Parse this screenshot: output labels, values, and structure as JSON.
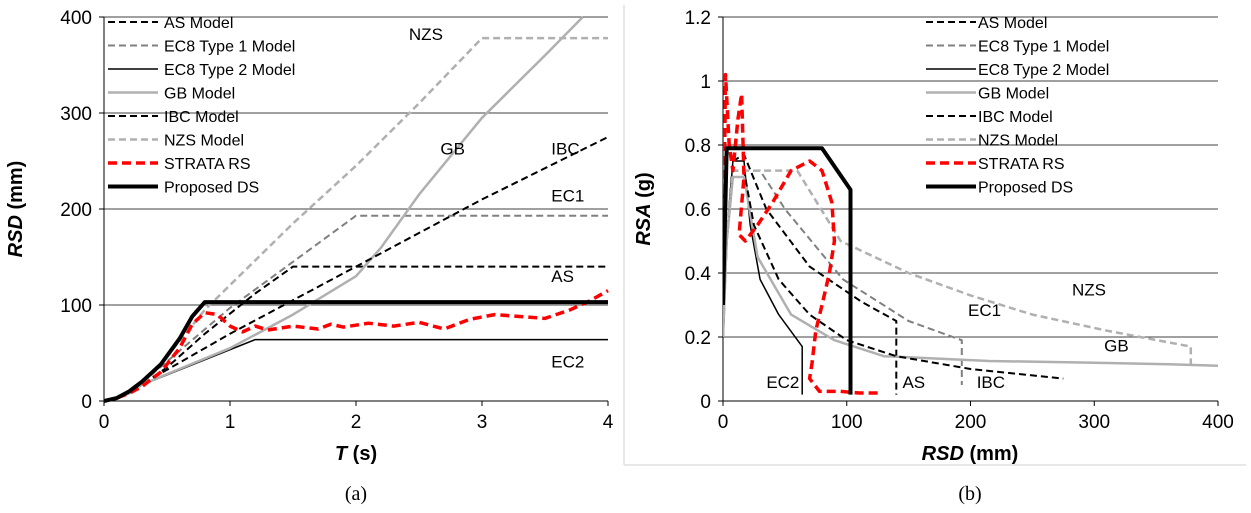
{
  "chart_data": [
    {
      "type": "line",
      "panel": "(a)",
      "xlabel": "T (s)",
      "xlabel_var": "T",
      "xlabel_unit": " (s)",
      "ylabel": "RSD (mm)",
      "ylabel_var": "RSD",
      "ylabel_unit": " (mm)",
      "xlim": [
        0,
        4
      ],
      "ylim": [
        0,
        400
      ],
      "xticks": [
        0,
        1,
        2,
        3,
        4
      ],
      "yticks": [
        0,
        100,
        200,
        300,
        400
      ],
      "grid": "horizontal",
      "legend": "top-left",
      "series": [
        {
          "name": "AS Model",
          "color": "#000000",
          "dash": "dash",
          "width": 2,
          "x": [
            0,
            0.1,
            0.2,
            0.3,
            0.5,
            0.8,
            1.2,
            1.5,
            4.0
          ],
          "y": [
            0,
            3,
            8,
            17,
            35,
            70,
            112,
            140,
            140
          ]
        },
        {
          "name": "EC8 Type 1 Model",
          "color": "#808080",
          "dash": "dash",
          "width": 2,
          "x": [
            0,
            0.1,
            0.2,
            0.3,
            0.4,
            1.0,
            2.0,
            4.0
          ],
          "y": [
            0,
            3,
            8,
            17,
            30,
            97,
            193,
            193
          ]
        },
        {
          "name": "EC8 Type 2 Model",
          "color": "#000000",
          "dash": "solid",
          "width": 1.5,
          "x": [
            0,
            0.1,
            0.2,
            0.3,
            0.4,
            1.2,
            4.0
          ],
          "y": [
            0,
            3,
            8,
            17,
            22,
            64,
            64
          ]
        },
        {
          "name": "GB Model",
          "color": "#b0b0b0",
          "dash": "solid",
          "width": 2.5,
          "x": [
            0,
            0.1,
            0.2,
            0.3,
            0.5,
            1.0,
            1.5,
            2.0,
            2.2,
            2.5,
            3.0,
            3.5,
            3.8
          ],
          "y": [
            0,
            3,
            8,
            17,
            28,
            55,
            90,
            130,
            160,
            215,
            295,
            360,
            400
          ]
        },
        {
          "name": "IBC Model",
          "color": "#000000",
          "dash": "dash",
          "width": 2,
          "x": [
            0,
            0.1,
            0.2,
            0.3,
            0.4,
            1.0,
            2.0,
            3.0,
            4.0
          ],
          "y": [
            0,
            3,
            8,
            17,
            25,
            70,
            140,
            210,
            275
          ]
        },
        {
          "name": "NZS Model",
          "color": "#b0b0b0",
          "dash": "dash",
          "width": 2.5,
          "x": [
            0,
            0.1,
            0.2,
            0.3,
            0.4,
            0.8,
            1.5,
            2.0,
            2.5,
            3.0,
            4.0
          ],
          "y": [
            0,
            3,
            8,
            17,
            30,
            95,
            185,
            245,
            310,
            378,
            378
          ]
        },
        {
          "name": "STRATA RS",
          "color": "#ff0000",
          "dash": "dash-thick",
          "width": 3.5,
          "x": [
            0,
            0.1,
            0.2,
            0.3,
            0.45,
            0.6,
            0.7,
            0.8,
            0.9,
            1.0,
            1.1,
            1.2,
            1.3,
            1.5,
            1.7,
            1.8,
            1.9,
            2.1,
            2.3,
            2.5,
            2.7,
            2.9,
            3.1,
            3.3,
            3.5,
            3.7,
            3.85,
            4.0
          ],
          "y": [
            0,
            3,
            8,
            15,
            30,
            55,
            80,
            92,
            90,
            78,
            72,
            78,
            74,
            78,
            75,
            80,
            77,
            81,
            78,
            82,
            75,
            85,
            90,
            88,
            86,
            95,
            104,
            115
          ]
        },
        {
          "name": "Proposed DS",
          "color": "#000000",
          "dash": "solid",
          "width": 4,
          "x": [
            0,
            0.1,
            0.2,
            0.3,
            0.45,
            0.6,
            0.7,
            0.8,
            4.0
          ],
          "y": [
            0,
            3,
            10,
            20,
            38,
            65,
            88,
            103,
            103
          ]
        }
      ],
      "annotations": [
        {
          "text": "NZS",
          "x": 2.42,
          "y": 376
        },
        {
          "text": "GB",
          "x": 2.67,
          "y": 257
        },
        {
          "text": "IBC",
          "x": 3.55,
          "y": 257
        },
        {
          "text": "EC1",
          "x": 3.55,
          "y": 208
        },
        {
          "text": "AS",
          "x": 3.55,
          "y": 124
        },
        {
          "text": "EC2",
          "x": 3.55,
          "y": 35
        }
      ],
      "caption": "(a)"
    },
    {
      "type": "line",
      "panel": "(b)",
      "xlabel": "RSD (mm)",
      "xlabel_var": "RSD",
      "xlabel_unit": " (mm)",
      "ylabel": "RSA (g)",
      "ylabel_var": "RSA",
      "ylabel_unit": " (g)",
      "xlim": [
        0,
        400
      ],
      "ylim": [
        0,
        1.2
      ],
      "xticks": [
        0,
        100,
        200,
        300,
        400
      ],
      "yticks": [
        0,
        0.2,
        0.4,
        0.6,
        0.8,
        1,
        1.2
      ],
      "ytick_labels": [
        "0",
        "0.2",
        "0.4",
        "0.6",
        "0.8",
        "1",
        "1.2"
      ],
      "grid": "horizontal",
      "legend": "top-center",
      "series": [
        {
          "name": "AS Model",
          "color": "#000000",
          "dash": "dash",
          "width": 2,
          "x": [
            0,
            3,
            8,
            17,
            35,
            70,
            112,
            140,
            140
          ],
          "y": [
            0.2,
            0.5,
            0.75,
            0.77,
            0.6,
            0.42,
            0.31,
            0.25,
            0.02
          ]
        },
        {
          "name": "EC8 Type 1 Model",
          "color": "#808080",
          "dash": "dash",
          "width": 2,
          "x": [
            0,
            3,
            8,
            17,
            30,
            50,
            97,
            150,
            193,
            193
          ],
          "y": [
            0.2,
            0.5,
            0.72,
            0.72,
            0.72,
            0.6,
            0.38,
            0.25,
            0.19,
            0.05
          ]
        },
        {
          "name": "EC8 Type 2 Model",
          "color": "#000000",
          "dash": "solid",
          "width": 1.5,
          "x": [
            0,
            3,
            8,
            17,
            22,
            30,
            45,
            64,
            64
          ],
          "y": [
            0.2,
            0.5,
            0.75,
            0.75,
            0.55,
            0.38,
            0.27,
            0.17,
            0.02
          ]
        },
        {
          "name": "GB Model",
          "color": "#b0b0b0",
          "dash": "solid",
          "width": 2.5,
          "x": [
            0,
            3,
            8,
            17,
            28,
            55,
            90,
            130,
            215,
            295,
            360,
            400
          ],
          "y": [
            0.2,
            0.5,
            0.7,
            0.7,
            0.45,
            0.27,
            0.19,
            0.14,
            0.125,
            0.12,
            0.115,
            0.11
          ]
        },
        {
          "name": "IBC Model",
          "color": "#000000",
          "dash": "dash",
          "width": 2,
          "x": [
            0,
            3,
            8,
            17,
            25,
            45,
            70,
            100,
            140,
            200,
            275
          ],
          "y": [
            0.2,
            0.5,
            0.72,
            0.72,
            0.55,
            0.38,
            0.27,
            0.19,
            0.14,
            0.1,
            0.07
          ]
        },
        {
          "name": "NZS Model",
          "color": "#b0b0b0",
          "dash": "dash",
          "width": 2.5,
          "x": [
            0,
            3,
            8,
            17,
            30,
            60,
            95,
            150,
            200,
            250,
            310,
            378,
            378
          ],
          "y": [
            0.2,
            0.5,
            0.72,
            0.72,
            0.72,
            0.72,
            0.5,
            0.4,
            0.33,
            0.27,
            0.22,
            0.17,
            0.1
          ]
        },
        {
          "name": "STRATA RS",
          "color": "#ff0000",
          "dash": "dash-thick",
          "width": 3.5,
          "x": [
            0,
            2,
            5,
            8,
            12,
            15,
            17,
            13,
            18,
            28,
            40,
            55,
            70,
            80,
            88,
            90,
            86,
            80,
            75,
            72,
            70,
            74,
            78,
            85,
            95,
            110,
            125
          ],
          "y": [
            0.3,
            1.02,
            0.8,
            0.72,
            0.88,
            0.96,
            0.7,
            0.52,
            0.5,
            0.55,
            0.62,
            0.72,
            0.75,
            0.72,
            0.62,
            0.5,
            0.4,
            0.3,
            0.22,
            0.12,
            0.07,
            0.05,
            0.03,
            0.03,
            0.03,
            0.025,
            0.025
          ]
        },
        {
          "name": "Proposed DS",
          "color": "#000000",
          "dash": "solid",
          "width": 4,
          "x": [
            0,
            3,
            10,
            20,
            80,
            103,
            103
          ],
          "y": [
            0.3,
            0.79,
            0.79,
            0.79,
            0.79,
            0.66,
            0.02
          ]
        }
      ],
      "annotations": [
        {
          "text": "NZS",
          "x": 282,
          "y": 0.33
        },
        {
          "text": "EC1",
          "x": 198,
          "y": 0.265
        },
        {
          "text": "GB",
          "x": 308,
          "y": 0.155
        },
        {
          "text": "EC2",
          "x": 35,
          "y": 0.04
        },
        {
          "text": "AS",
          "x": 145,
          "y": 0.04
        },
        {
          "text": "IBC",
          "x": 205,
          "y": 0.04
        }
      ],
      "caption": "(b)"
    }
  ]
}
